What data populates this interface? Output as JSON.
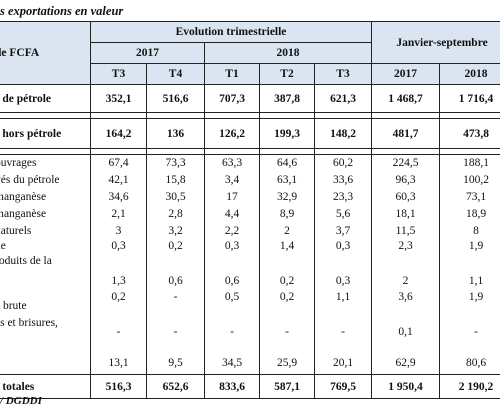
{
  "title": "s exportations en valeur",
  "header": {
    "unit": " de FCFA",
    "trimestrielle": "Evolution trimestrielle",
    "janvier": "Janvier-septembre",
    "y2017": "2017",
    "y2018": "2018",
    "cols": [
      "T3",
      "T4",
      "T1",
      "T2",
      "T3",
      "2017",
      "2018"
    ]
  },
  "rows": [
    {
      "label": "s de pétrole",
      "values": [
        "352,1",
        "516,6",
        "707,3",
        "387,8",
        "621,3",
        "1 468,7",
        "1 716,4"
      ]
    },
    {
      "label": "s hors pétrole",
      "values": [
        "164,2",
        "136",
        "126,2",
        "199,3",
        "148,2",
        "481,7",
        "473,8"
      ]
    },
    {
      "label": "ouvrages",
      "values": [
        "67,4",
        "73,3",
        "63,3",
        "64,6",
        "60,2",
        "224,5",
        "188,1"
      ]
    },
    {
      "label": "vés du pétrole",
      "values": [
        "42,1",
        "15,8",
        "3,4",
        "63,1",
        "33,6",
        "96,3",
        "100,2"
      ]
    },
    {
      "label": "manganèse",
      "values": [
        "34,6",
        "30,5",
        "17",
        "32,9",
        "23,3",
        "60,3",
        "73,1"
      ]
    },
    {
      "label": "manganèse",
      "values": [
        "2,1",
        "2,8",
        "4,4",
        "8,9",
        "5,6",
        "18,1",
        "18,9"
      ]
    },
    {
      "label": "naturels",
      "values": [
        "3",
        "3,2",
        "2,2",
        "2",
        "3,7",
        "11,5",
        "8"
      ]
    },
    {
      "label": "ne",
      "values": [
        "0,3",
        "0,2",
        "0,3",
        "1,4",
        "0,3",
        "2,3",
        "1,9"
      ]
    },
    {
      "label": "roduits de la",
      "values": [
        "1,3",
        "0,6",
        "0,6",
        "0,2",
        "0,3",
        "2",
        "1,1"
      ]
    },
    {
      "label": "e brute",
      "values": [
        "0,2",
        "-",
        "0,5",
        "0,2",
        "1,1",
        "3,6",
        "1,9"
      ]
    },
    {
      "label": "es et brisures,",
      "values": [
        "-",
        "-",
        "-",
        "-",
        "-",
        "0,1",
        "-"
      ]
    },
    {
      "label": "",
      "values": [
        "13,1",
        "9,5",
        "34,5",
        "25,9",
        "20,1",
        "62,9",
        "80,6"
      ]
    },
    {
      "label": "s totales",
      "values": [
        "516,3",
        "652,6",
        "833,6",
        "587,1",
        "769,5",
        "1 950,4",
        "2 190,2"
      ]
    }
  ],
  "source": "/ DGDDI"
}
